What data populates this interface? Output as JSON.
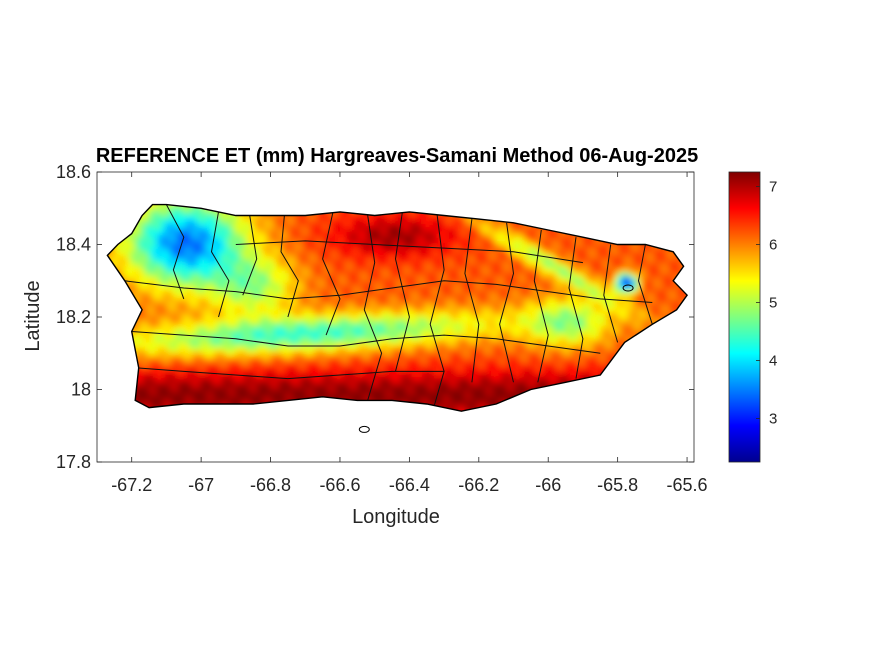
{
  "chart_data": {
    "type": "heatmap",
    "title": "REFERENCE ET (mm) Hargreaves-Samani Method  06-Aug-2025",
    "xlabel": "Longitude",
    "ylabel": "Latitude",
    "xlim": [
      -67.3,
      -65.58
    ],
    "ylim": [
      17.8,
      18.6
    ],
    "xticks": [
      -67.2,
      -67,
      -66.8,
      -66.6,
      -66.4,
      -66.2,
      -66,
      -65.8,
      -65.6
    ],
    "xtick_labels": [
      "-67.2",
      "-67",
      "-66.8",
      "-66.6",
      "-66.4",
      "-66.2",
      "-66",
      "-65.8",
      "-65.6"
    ],
    "yticks": [
      18.6,
      18.4,
      18.2,
      18,
      17.8
    ],
    "ytick_labels": [
      "18.6",
      "18.4",
      "18.2",
      "18",
      "17.8"
    ],
    "colorbar": {
      "colormap": "jet",
      "clim": [
        2.25,
        7.25
      ],
      "ticks": [
        3,
        4,
        5,
        6,
        7
      ],
      "tick_labels": [
        "3",
        "4",
        "5",
        "6",
        "7"
      ]
    },
    "region": "Puerto Rico municipalities",
    "outline": [
      [
        -67.27,
        18.37
      ],
      [
        -67.24,
        18.4
      ],
      [
        -67.2,
        18.43
      ],
      [
        -67.17,
        18.48
      ],
      [
        -67.14,
        18.51
      ],
      [
        -67.1,
        18.51
      ],
      [
        -67.0,
        18.5
      ],
      [
        -66.9,
        18.48
      ],
      [
        -66.8,
        18.48
      ],
      [
        -66.7,
        18.48
      ],
      [
        -66.6,
        18.49
      ],
      [
        -66.5,
        18.48
      ],
      [
        -66.4,
        18.49
      ],
      [
        -66.3,
        18.48
      ],
      [
        -66.2,
        18.47
      ],
      [
        -66.1,
        18.46
      ],
      [
        -66.0,
        18.44
      ],
      [
        -65.9,
        18.42
      ],
      [
        -65.8,
        18.4
      ],
      [
        -65.72,
        18.4
      ],
      [
        -65.64,
        18.38
      ],
      [
        -65.61,
        18.34
      ],
      [
        -65.64,
        18.3
      ],
      [
        -65.6,
        18.26
      ],
      [
        -65.63,
        18.22
      ],
      [
        -65.7,
        18.18
      ],
      [
        -65.78,
        18.13
      ],
      [
        -65.85,
        18.04
      ],
      [
        -65.95,
        18.02
      ],
      [
        -66.05,
        18.0
      ],
      [
        -66.15,
        17.96
      ],
      [
        -66.25,
        17.94
      ],
      [
        -66.35,
        17.96
      ],
      [
        -66.45,
        17.97
      ],
      [
        -66.55,
        17.97
      ],
      [
        -66.65,
        17.98
      ],
      [
        -66.75,
        17.97
      ],
      [
        -66.85,
        17.96
      ],
      [
        -66.95,
        17.96
      ],
      [
        -67.05,
        17.96
      ],
      [
        -67.15,
        17.95
      ],
      [
        -67.19,
        17.97
      ],
      [
        -67.18,
        18.06
      ],
      [
        -67.2,
        18.16
      ],
      [
        -67.17,
        18.22
      ],
      [
        -67.22,
        18.3
      ],
      [
        -67.27,
        18.37
      ]
    ],
    "islets": [
      {
        "lon": -66.53,
        "lat": 17.89
      },
      {
        "lon": -65.77,
        "lat": 18.28
      }
    ],
    "municipal_borders": [
      [
        [
          -67.1,
          18.51
        ],
        [
          -67.05,
          18.42
        ],
        [
          -67.08,
          18.33
        ],
        [
          -67.05,
          18.25
        ]
      ],
      [
        [
          -66.95,
          18.49
        ],
        [
          -66.97,
          18.38
        ],
        [
          -66.92,
          18.3
        ],
        [
          -66.95,
          18.2
        ]
      ],
      [
        [
          -66.86,
          18.48
        ],
        [
          -66.84,
          18.36
        ],
        [
          -66.88,
          18.26
        ]
      ],
      [
        [
          -66.76,
          18.48
        ],
        [
          -66.77,
          18.38
        ],
        [
          -66.72,
          18.3
        ],
        [
          -66.75,
          18.2
        ]
      ],
      [
        [
          -66.62,
          18.49
        ],
        [
          -66.65,
          18.36
        ],
        [
          -66.6,
          18.25
        ],
        [
          -66.64,
          18.15
        ]
      ],
      [
        [
          -66.52,
          18.48
        ],
        [
          -66.5,
          18.35
        ],
        [
          -66.53,
          18.22
        ],
        [
          -66.48,
          18.1
        ],
        [
          -66.52,
          17.97
        ]
      ],
      [
        [
          -66.42,
          18.49
        ],
        [
          -66.44,
          18.36
        ],
        [
          -66.4,
          18.2
        ],
        [
          -66.44,
          18.05
        ]
      ],
      [
        [
          -66.32,
          18.48
        ],
        [
          -66.3,
          18.33
        ],
        [
          -66.34,
          18.18
        ],
        [
          -66.3,
          18.05
        ],
        [
          -66.33,
          17.95
        ]
      ],
      [
        [
          -66.22,
          18.47
        ],
        [
          -66.24,
          18.32
        ],
        [
          -66.2,
          18.18
        ],
        [
          -66.22,
          18.02
        ]
      ],
      [
        [
          -66.12,
          18.46
        ],
        [
          -66.1,
          18.32
        ],
        [
          -66.14,
          18.18
        ],
        [
          -66.1,
          18.02
        ]
      ],
      [
        [
          -66.02,
          18.44
        ],
        [
          -66.04,
          18.3
        ],
        [
          -66.0,
          18.15
        ],
        [
          -66.03,
          18.02
        ]
      ],
      [
        [
          -65.92,
          18.42
        ],
        [
          -65.94,
          18.28
        ],
        [
          -65.9,
          18.14
        ],
        [
          -65.92,
          18.03
        ]
      ],
      [
        [
          -65.82,
          18.4
        ],
        [
          -65.84,
          18.26
        ],
        [
          -65.8,
          18.13
        ]
      ],
      [
        [
          -65.72,
          18.4
        ],
        [
          -65.74,
          18.3
        ],
        [
          -65.7,
          18.18
        ]
      ],
      [
        [
          -67.2,
          18.16
        ],
        [
          -67.05,
          18.15
        ],
        [
          -66.9,
          18.14
        ],
        [
          -66.75,
          18.12
        ],
        [
          -66.6,
          18.12
        ],
        [
          -66.45,
          18.14
        ],
        [
          -66.3,
          18.15
        ],
        [
          -66.15,
          18.14
        ],
        [
          -66.0,
          18.12
        ],
        [
          -65.85,
          18.1
        ]
      ],
      [
        [
          -67.22,
          18.3
        ],
        [
          -67.05,
          18.28
        ],
        [
          -66.9,
          18.27
        ],
        [
          -66.75,
          18.25
        ],
        [
          -66.6,
          18.26
        ],
        [
          -66.45,
          18.28
        ],
        [
          -66.3,
          18.3
        ],
        [
          -66.15,
          18.29
        ],
        [
          -66.0,
          18.27
        ],
        [
          -65.85,
          18.25
        ],
        [
          -65.7,
          18.24
        ]
      ],
      [
        [
          -67.19,
          18.06
        ],
        [
          -67.05,
          18.05
        ],
        [
          -66.9,
          18.04
        ],
        [
          -66.75,
          18.03
        ],
        [
          -66.6,
          18.04
        ],
        [
          -66.45,
          18.05
        ],
        [
          -66.3,
          18.05
        ]
      ],
      [
        [
          -66.9,
          18.4
        ],
        [
          -66.7,
          18.41
        ],
        [
          -66.5,
          18.4
        ],
        [
          -66.3,
          18.39
        ],
        [
          -66.1,
          18.38
        ],
        [
          -65.9,
          18.35
        ]
      ]
    ]
  }
}
